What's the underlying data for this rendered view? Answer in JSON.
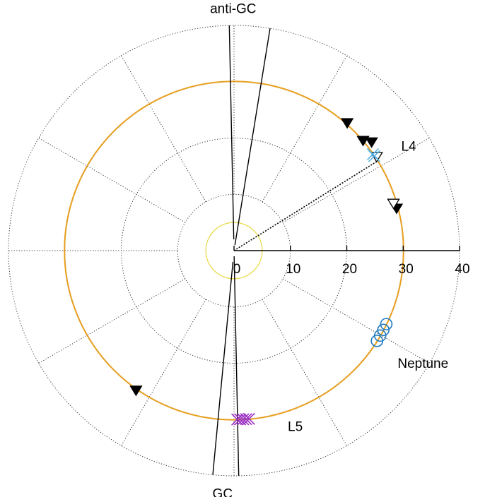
{
  "chart_data": {
    "type": "scatter",
    "projection": "polar",
    "r_ticks": [
      "0",
      "10",
      "20",
      "30",
      "40"
    ],
    "r_max": 40,
    "ring_step": 10,
    "spoke_step_deg": 30,
    "grid": true,
    "colors": {
      "orbit": "#e8a020",
      "sun_zone": "#e8d840",
      "trojan_cross": "#5ab4e6",
      "l5_cross": "#9a2fc4",
      "neptune": "#1f7ac0",
      "grid": "#333333"
    },
    "circles": [
      {
        "name": "orbit",
        "r": 30.07
      },
      {
        "name": "sun_zone",
        "r": 5
      }
    ],
    "guide_lines": [
      {
        "name": "anti-gc-line-1",
        "r1": 2,
        "r2": 40,
        "theta": 91.2,
        "style": "solid"
      },
      {
        "name": "anti-gc-line-2",
        "r1": 1,
        "r2": 40,
        "theta": 80.8,
        "style": "solid"
      },
      {
        "name": "gc-line-1",
        "r1": 2,
        "r2": 40,
        "theta": 264.6,
        "style": "solid"
      },
      {
        "name": "gc-line-2",
        "r1": 1,
        "r2": 40,
        "theta": 271.2,
        "style": "solid"
      },
      {
        "name": "l4-direction-line",
        "r1": 0,
        "r2": 30,
        "theta": 32,
        "style": "dotted"
      },
      {
        "name": "r-axis-line",
        "r1": 0,
        "r2": 40,
        "theta": 0,
        "style": "solid"
      }
    ],
    "series": [
      {
        "marker": "triangle-down-filled",
        "points": [
          {
            "r": 30.3,
            "theta": 48.5
          },
          {
            "r": 30.1,
            "theta": 40.5
          },
          {
            "r": 31.1,
            "theta": 38.3
          },
          {
            "r": 29.8,
            "theta": 14.6
          },
          {
            "r": 30.3,
            "theta": 235.0
          }
        ]
      },
      {
        "marker": "triangle-down-open",
        "points": [
          {
            "r": 30.3,
            "theta": 33.4
          },
          {
            "r": 29.5,
            "theta": 16.5
          }
        ]
      },
      {
        "marker": "x",
        "color_key": "trojan_cross",
        "points": [
          {
            "r": 30.0,
            "theta": 34.8
          },
          {
            "r": 30.0,
            "theta": 34.0
          }
        ]
      },
      {
        "marker": "x",
        "color_key": "l5_cross",
        "points": [
          {
            "r": 30.0,
            "theta": 271.1
          },
          {
            "r": 30.0,
            "theta": 272.1
          },
          {
            "r": 30.0,
            "theta": 273.1
          },
          {
            "r": 30.0,
            "theta": 274.1
          },
          {
            "r": 30.0,
            "theta": 275.1
          }
        ]
      },
      {
        "marker": "circle-open",
        "color_key": "neptune",
        "points": [
          {
            "r": 30.0,
            "theta": 334.2
          },
          {
            "r": 30.0,
            "theta": 332.0
          },
          {
            "r": 30.0,
            "theta": 329.8
          },
          {
            "r": 30.0,
            "theta": 327.7
          }
        ]
      }
    ],
    "annotations": [
      {
        "text": "anti-GC",
        "r": 43.1,
        "theta": 90.2,
        "anchor": "middle"
      },
      {
        "text": "GC",
        "r": 43.1,
        "theta": 267.3,
        "anchor": "middle"
      },
      {
        "text": "L4",
        "r": 35.0,
        "theta": 32.1,
        "anchor": "start"
      },
      {
        "text": "Neptune",
        "r": 35.2,
        "theta": 325.5,
        "anchor": "start"
      },
      {
        "text": "L5",
        "r": 32.6,
        "theta": 287.0,
        "anchor": "start"
      }
    ]
  }
}
